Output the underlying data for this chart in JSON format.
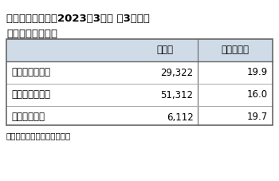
{
  "title_line1": "ゴールドウイン、2023年3月期 第3四半期",
  "title_line2": "事業区分別売上高",
  "header_col2": "売上高",
  "header_col3": "（増減率）",
  "rows": [
    {
      "label": "パフォーマンス",
      "value": "29,322",
      "rate": "19.9"
    },
    {
      "label": "ライフスタイル",
      "value": "51,312",
      "rate": "16.0"
    },
    {
      "label": "ファッション",
      "value": "6,112",
      "rate": "19.7"
    }
  ],
  "footnote": "単位は百万円。増減率は％。",
  "header_bg": "#cfdce8",
  "table_border_color": "#666666",
  "row_line_color": "#aaaaaa",
  "title_fontsize": 9.5,
  "header_fontsize": 8.5,
  "cell_fontsize": 8.5,
  "footnote_fontsize": 7.5,
  "bg_color": "#ffffff"
}
